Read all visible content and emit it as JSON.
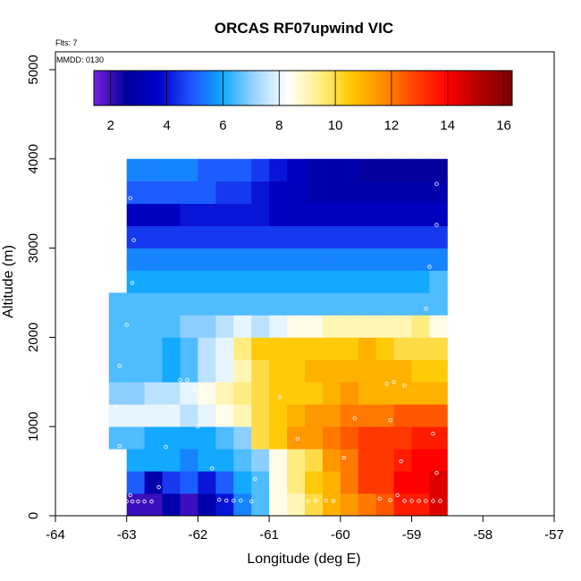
{
  "chart_data": {
    "type": "heatmap",
    "title": "ORCAS RF07upwind VIC",
    "xlabel": "Longitude (deg E)",
    "ylabel": "Altitude (m)",
    "xlim": [
      -64,
      -57
    ],
    "ylim": [
      0,
      5200
    ],
    "xticks": [
      "-64",
      "-63",
      "-62",
      "-61",
      "-60",
      "-59",
      "-58",
      "-57"
    ],
    "yticks": [
      "0",
      "1000",
      "2000",
      "3000",
      "4000",
      "5000"
    ],
    "annotations": {
      "flts": "Flts: 7",
      "mmdd": "MMDD: 0130"
    },
    "colorbar": {
      "range": [
        1.4,
        16.3
      ],
      "ticks": [
        "2",
        "4",
        "6",
        "8",
        "10",
        "12",
        "14",
        "16"
      ],
      "stops": [
        "#7a20e0",
        "#00009c",
        "#0000c8",
        "#1f50ff",
        "#10a8ff",
        "#9cd4ff",
        "#ffffff",
        "#fff08a",
        "#ffc800",
        "#ff8c00",
        "#ff4000",
        "#ff0000",
        "#b00000",
        "#7a0000"
      ]
    },
    "grid": {
      "x0": -63.25,
      "dx": 0.25,
      "y0": 0,
      "dy": 250,
      "rows": [
        [
          null,
          2.0,
          2.0,
          3.0,
          2.0,
          3.0,
          4.0,
          5.5,
          6.5,
          8.5,
          9.0,
          10.0,
          11.0,
          11.5,
          12.0,
          12.5,
          13.5,
          13.5,
          14.5
        ],
        [
          null,
          5.0,
          3.0,
          4.5,
          5.0,
          4.0,
          5.0,
          6.0,
          6.5,
          8.5,
          9.5,
          10.5,
          11.0,
          12.0,
          13.0,
          13.0,
          14.0,
          14.0,
          14.5
        ],
        [
          null,
          6.0,
          6.0,
          6.0,
          5.5,
          6.0,
          6.0,
          6.5,
          7.0,
          8.5,
          9.5,
          10.0,
          11.5,
          12.0,
          13.0,
          13.0,
          13.5,
          14.0,
          14.0
        ],
        [
          6.5,
          6.5,
          6.0,
          6.0,
          6.0,
          6.0,
          6.5,
          7.0,
          10.0,
          10.5,
          11.5,
          11.5,
          12.0,
          12.5,
          13.0,
          13.0,
          13.0,
          13.5,
          13.5
        ],
        [
          8.0,
          8.0,
          8.0,
          8.0,
          7.5,
          8.0,
          8.5,
          9.0,
          10.0,
          10.5,
          11.0,
          11.5,
          11.5,
          12.0,
          12.0,
          12.0,
          12.5,
          12.5,
          12.5
        ],
        [
          7.0,
          7.0,
          7.5,
          7.5,
          8.0,
          8.5,
          9.0,
          9.5,
          10.0,
          10.5,
          10.5,
          10.5,
          11.0,
          11.5,
          11.0,
          11.0,
          11.0,
          11.0,
          11.0
        ],
        [
          6.5,
          6.5,
          6.5,
          6.0,
          6.5,
          7.5,
          8.0,
          9.0,
          10.0,
          10.5,
          10.5,
          11.0,
          11.0,
          11.0,
          11.0,
          11.0,
          11.0,
          10.5,
          10.5
        ],
        [
          6.5,
          6.5,
          6.5,
          6.0,
          6.5,
          7.5,
          8.0,
          9.5,
          10.5,
          10.5,
          10.5,
          10.5,
          10.5,
          10.5,
          11.0,
          10.5,
          10.0,
          10.0,
          10.0
        ],
        [
          6.5,
          6.5,
          6.5,
          6.5,
          7.0,
          7.0,
          7.5,
          8.0,
          7.5,
          8.0,
          8.5,
          8.5,
          9.0,
          9.0,
          9.0,
          9.0,
          9.0,
          9.5,
          8.5
        ],
        [
          6.5,
          6.5,
          6.5,
          6.5,
          6.5,
          6.5,
          6.5,
          6.5,
          6.5,
          6.5,
          6.5,
          6.5,
          6.5,
          6.5,
          6.5,
          6.5,
          6.5,
          6.5,
          6.5
        ],
        [
          null,
          6.0,
          6.0,
          6.0,
          6.0,
          6.0,
          6.0,
          6.0,
          6.0,
          6.0,
          6.0,
          6.0,
          6.0,
          6.0,
          6.0,
          6.0,
          6.0,
          6.0,
          6.5
        ],
        [
          null,
          5.5,
          5.5,
          5.5,
          5.5,
          5.5,
          5.5,
          5.5,
          5.5,
          5.5,
          5.5,
          5.5,
          5.5,
          5.5,
          5.5,
          5.5,
          5.5,
          5.5,
          5.5
        ],
        [
          null,
          4.5,
          4.5,
          4.5,
          4.5,
          4.5,
          4.5,
          4.5,
          4.5,
          4.5,
          4.5,
          4.5,
          4.5,
          4.5,
          4.5,
          4.5,
          4.5,
          4.5,
          4.5
        ],
        [
          null,
          3.5,
          3.5,
          3.5,
          4.0,
          4.0,
          4.0,
          4.0,
          4.0,
          3.5,
          3.5,
          3.5,
          3.5,
          3.5,
          3.5,
          3.5,
          3.5,
          3.5,
          3.5
        ],
        [
          null,
          5.0,
          5.0,
          5.0,
          5.0,
          5.0,
          4.5,
          4.5,
          4.0,
          3.5,
          3.5,
          3.0,
          3.0,
          3.0,
          3.0,
          3.0,
          3.0,
          3.0,
          3.0
        ],
        [
          null,
          5.5,
          5.5,
          5.5,
          5.5,
          5.0,
          5.0,
          5.0,
          4.5,
          4.0,
          3.5,
          3.0,
          3.0,
          3.0,
          2.5,
          2.5,
          2.5,
          2.5,
          2.5
        ]
      ]
    },
    "points": [
      [
        -62.95,
        3560
      ],
      [
        -58.65,
        3720
      ],
      [
        -58.65,
        3260
      ],
      [
        -62.9,
        3090
      ],
      [
        -58.75,
        2790
      ],
      [
        -62.92,
        2610
      ],
      [
        -58.8,
        2320
      ],
      [
        -63.0,
        2140
      ],
      [
        -63.1,
        1680
      ],
      [
        -62.25,
        1520
      ],
      [
        -62.15,
        1520
      ],
      [
        -62.05,
        1420
      ],
      [
        -59.35,
        1480
      ],
      [
        -59.25,
        1500
      ],
      [
        -59.1,
        1460
      ],
      [
        -60.85,
        1330
      ],
      [
        -63.15,
        1220
      ],
      [
        -62.35,
        1220
      ],
      [
        -62.0,
        1000
      ],
      [
        -59.8,
        1090
      ],
      [
        -59.3,
        1070
      ],
      [
        -58.7,
        920
      ],
      [
        -60.6,
        860
      ],
      [
        -63.1,
        780
      ],
      [
        -62.45,
        770
      ],
      [
        -59.95,
        650
      ],
      [
        -59.15,
        610
      ],
      [
        -61.8,
        530
      ],
      [
        -58.65,
        480
      ],
      [
        -61.2,
        410
      ],
      [
        -62.95,
        230
      ],
      [
        -62.55,
        320
      ],
      [
        -63.0,
        160
      ],
      [
        -62.92,
        160
      ],
      [
        -62.84,
        160
      ],
      [
        -62.75,
        160
      ],
      [
        -62.65,
        160
      ],
      [
        -61.7,
        180
      ],
      [
        -61.6,
        170
      ],
      [
        -61.5,
        170
      ],
      [
        -61.4,
        170
      ],
      [
        -61.25,
        160
      ],
      [
        -60.45,
        160
      ],
      [
        -60.35,
        165
      ],
      [
        -60.2,
        170
      ],
      [
        -60.1,
        165
      ],
      [
        -59.2,
        230
      ],
      [
        -59.1,
        165
      ],
      [
        -59.0,
        165
      ],
      [
        -58.9,
        165
      ],
      [
        -58.8,
        165
      ],
      [
        -58.7,
        165
      ],
      [
        -58.6,
        165
      ],
      [
        -59.45,
        190
      ],
      [
        -59.3,
        175
      ]
    ]
  }
}
